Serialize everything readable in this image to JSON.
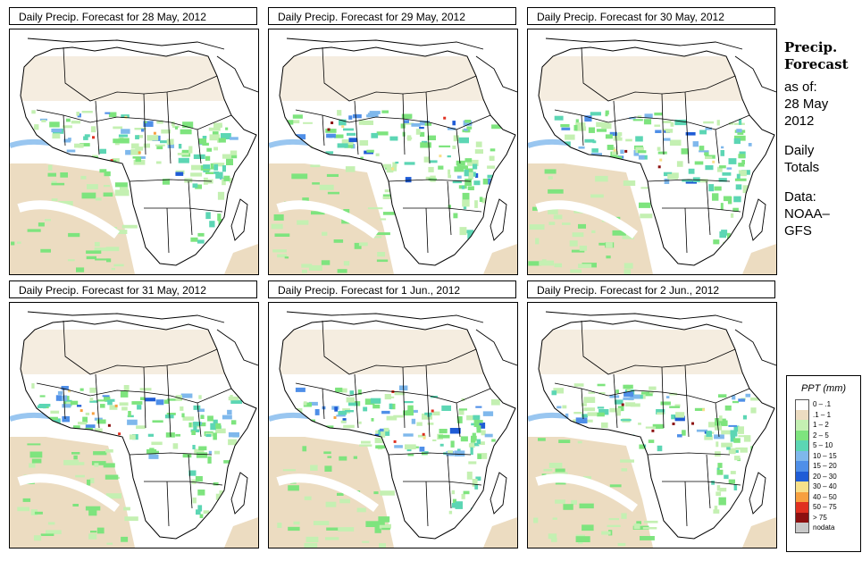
{
  "panels": [
    {
      "title": "Daily Precip. Forecast for  28 May, 2012"
    },
    {
      "title": "Daily Precip. Forecast for  29 May, 2012"
    },
    {
      "title": "Daily Precip. Forecast for  30 May, 2012"
    },
    {
      "title": "Daily Precip. Forecast for  31 May, 2012"
    },
    {
      "title": "Daily Precip. Forecast for  1 Jun., 2012"
    },
    {
      "title": "Daily Precip. Forecast for  2 Jun., 2012"
    }
  ],
  "side": {
    "heading_1": "Precip.",
    "heading_2": "Forecast",
    "asof_label": "as of:",
    "asof_date_1": "28 May",
    "asof_date_2": "2012",
    "totals_1": "Daily",
    "totals_2": "Totals",
    "data_1": "Data:",
    "data_2": "NOAA–",
    "data_3": "GFS"
  },
  "legend": {
    "title": "PPT (mm)",
    "items": [
      {
        "label": "0 – .1",
        "color": "#ffffff"
      },
      {
        "label": ".1 – 1",
        "color": "#ecdcc1"
      },
      {
        "label": "1 – 2",
        "color": "#c4f0b2"
      },
      {
        "label": "2 – 5",
        "color": "#7ee47e"
      },
      {
        "label": "5 – 10",
        "color": "#5cd6b4"
      },
      {
        "label": "10 – 15",
        "color": "#7fb8ec"
      },
      {
        "label": "15 – 20",
        "color": "#4f8fe8"
      },
      {
        "label": "20 – 30",
        "color": "#1f5cd6"
      },
      {
        "label": "30 – 40",
        "color": "#f7e08a"
      },
      {
        "label": "40 – 50",
        "color": "#f7a040"
      },
      {
        "label": "50 – 75",
        "color": "#e03020"
      },
      {
        "label": "> 75",
        "color": "#8c1010"
      },
      {
        "label": "nodata",
        "color": "#c8c8c8"
      }
    ]
  }
}
